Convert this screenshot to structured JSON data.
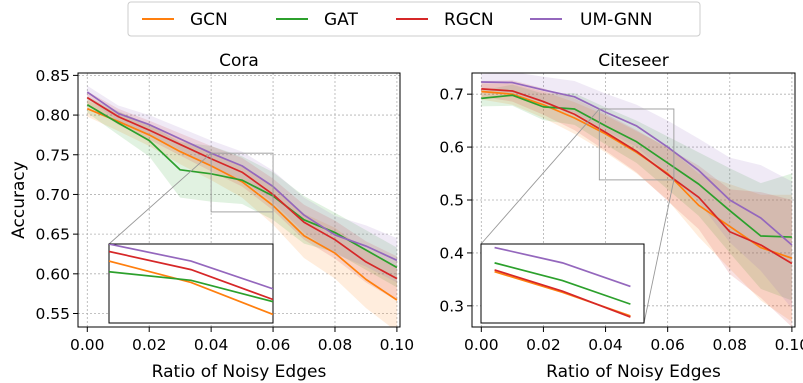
{
  "legend": {
    "placement": "top-center",
    "items": [
      {
        "name": "GCN",
        "color": "#ff7f0e"
      },
      {
        "name": "GAT",
        "color": "#2ca02c"
      },
      {
        "name": "RGCN",
        "color": "#d62728"
      },
      {
        "name": "UM-GNN",
        "color": "#9467bd"
      }
    ]
  },
  "chart_data": [
    {
      "type": "line",
      "title": "Cora",
      "xlabel": "Ratio of Noisy Edges",
      "ylabel": "Accuracy",
      "xlim": [
        -0.003,
        0.101
      ],
      "ylim": [
        0.533,
        0.853
      ],
      "xticks": [
        0.0,
        0.02,
        0.04,
        0.06,
        0.08,
        0.1
      ],
      "xtick_labels": [
        "0.00",
        "0.02",
        "0.04",
        "0.06",
        "0.08",
        "0.10"
      ],
      "yticks": [
        0.55,
        0.6,
        0.65,
        0.7,
        0.75,
        0.8,
        0.85
      ],
      "ytick_labels": [
        "0.55",
        "0.60",
        "0.65",
        "0.70",
        "0.75",
        "0.80",
        "0.85"
      ],
      "grid": true,
      "x": [
        0.0,
        0.01,
        0.02,
        0.03,
        0.04,
        0.05,
        0.06,
        0.07,
        0.08,
        0.09,
        0.1
      ],
      "series": [
        {
          "name": "GCN",
          "color": "#ff7f0e",
          "values": [
            0.808,
            0.792,
            0.775,
            0.754,
            0.736,
            0.716,
            0.686,
            0.648,
            0.626,
            0.593,
            0.567
          ],
          "band": [
            0.01,
            0.012,
            0.014,
            0.016,
            0.018,
            0.02,
            0.024,
            0.028,
            0.032,
            0.036,
            0.04
          ]
        },
        {
          "name": "GAT",
          "color": "#2ca02c",
          "values": [
            0.813,
            0.79,
            0.768,
            0.731,
            0.726,
            0.718,
            0.698,
            0.668,
            0.652,
            0.63,
            0.608
          ],
          "band": [
            0.01,
            0.015,
            0.02,
            0.035,
            0.035,
            0.03,
            0.03,
            0.03,
            0.025,
            0.025,
            0.025
          ]
        },
        {
          "name": "RGCN",
          "color": "#d62728",
          "values": [
            0.822,
            0.798,
            0.781,
            0.763,
            0.745,
            0.728,
            0.7,
            0.665,
            0.643,
            0.615,
            0.594
          ],
          "band": [
            0.008,
            0.01,
            0.012,
            0.014,
            0.016,
            0.018,
            0.02,
            0.022,
            0.024,
            0.026,
            0.028
          ]
        },
        {
          "name": "UM-GNN",
          "color": "#9467bd",
          "values": [
            0.829,
            0.802,
            0.788,
            0.77,
            0.752,
            0.736,
            0.71,
            0.674,
            0.649,
            0.635,
            0.617
          ],
          "band": [
            0.008,
            0.01,
            0.012,
            0.014,
            0.016,
            0.018,
            0.02,
            0.022,
            0.024,
            0.026,
            0.028
          ]
        }
      ],
      "inset": {
        "xlim": [
          0.04,
          0.06
        ],
        "ylim": [
          0.678,
          0.752
        ]
      }
    },
    {
      "type": "line",
      "title": "Citeseer",
      "xlabel": "Ratio of Noisy Edges",
      "ylabel": "",
      "xlim": [
        -0.003,
        0.101
      ],
      "ylim": [
        0.26,
        0.74
      ],
      "xticks": [
        0.0,
        0.02,
        0.04,
        0.06,
        0.08,
        0.1
      ],
      "xtick_labels": [
        "0.00",
        "0.02",
        "0.04",
        "0.06",
        "0.08",
        "0.10"
      ],
      "yticks": [
        0.3,
        0.4,
        0.5,
        0.6,
        0.7
      ],
      "ytick_labels": [
        "0.3",
        "0.4",
        "0.5",
        "0.6",
        "0.7"
      ],
      "grid": true,
      "x": [
        0.0,
        0.01,
        0.02,
        0.03,
        0.04,
        0.05,
        0.06,
        0.07,
        0.08,
        0.09,
        0.1
      ],
      "series": [
        {
          "name": "GCN",
          "color": "#ff7f0e",
          "values": [
            0.705,
            0.7,
            0.68,
            0.655,
            0.625,
            0.59,
            0.55,
            0.49,
            0.45,
            0.41,
            0.39
          ],
          "band": [
            0.015,
            0.02,
            0.025,
            0.03,
            0.035,
            0.04,
            0.05,
            0.06,
            0.08,
            0.1,
            0.12
          ]
        },
        {
          "name": "GAT",
          "color": "#2ca02c",
          "values": [
            0.692,
            0.698,
            0.676,
            0.672,
            0.64,
            0.61,
            0.57,
            0.53,
            0.48,
            0.432,
            0.43
          ],
          "band": [
            0.015,
            0.02,
            0.025,
            0.03,
            0.035,
            0.04,
            0.05,
            0.06,
            0.08,
            0.1,
            0.12
          ]
        },
        {
          "name": "RGCN",
          "color": "#d62728",
          "values": [
            0.71,
            0.706,
            0.686,
            0.662,
            0.628,
            0.592,
            0.548,
            0.505,
            0.44,
            0.415,
            0.38
          ],
          "band": [
            0.015,
            0.02,
            0.025,
            0.03,
            0.035,
            0.04,
            0.05,
            0.06,
            0.08,
            0.1,
            0.12
          ]
        },
        {
          "name": "UM-GNN",
          "color": "#9467bd",
          "values": [
            0.723,
            0.722,
            0.708,
            0.695,
            0.666,
            0.64,
            0.6,
            0.556,
            0.5,
            0.466,
            0.415
          ],
          "band": [
            0.015,
            0.02,
            0.025,
            0.03,
            0.035,
            0.04,
            0.05,
            0.06,
            0.08,
            0.1,
            0.12
          ]
        }
      ],
      "inset": {
        "xlim": [
          0.038,
          0.062
        ],
        "ylim": [
          0.538,
          0.672
        ]
      }
    }
  ]
}
